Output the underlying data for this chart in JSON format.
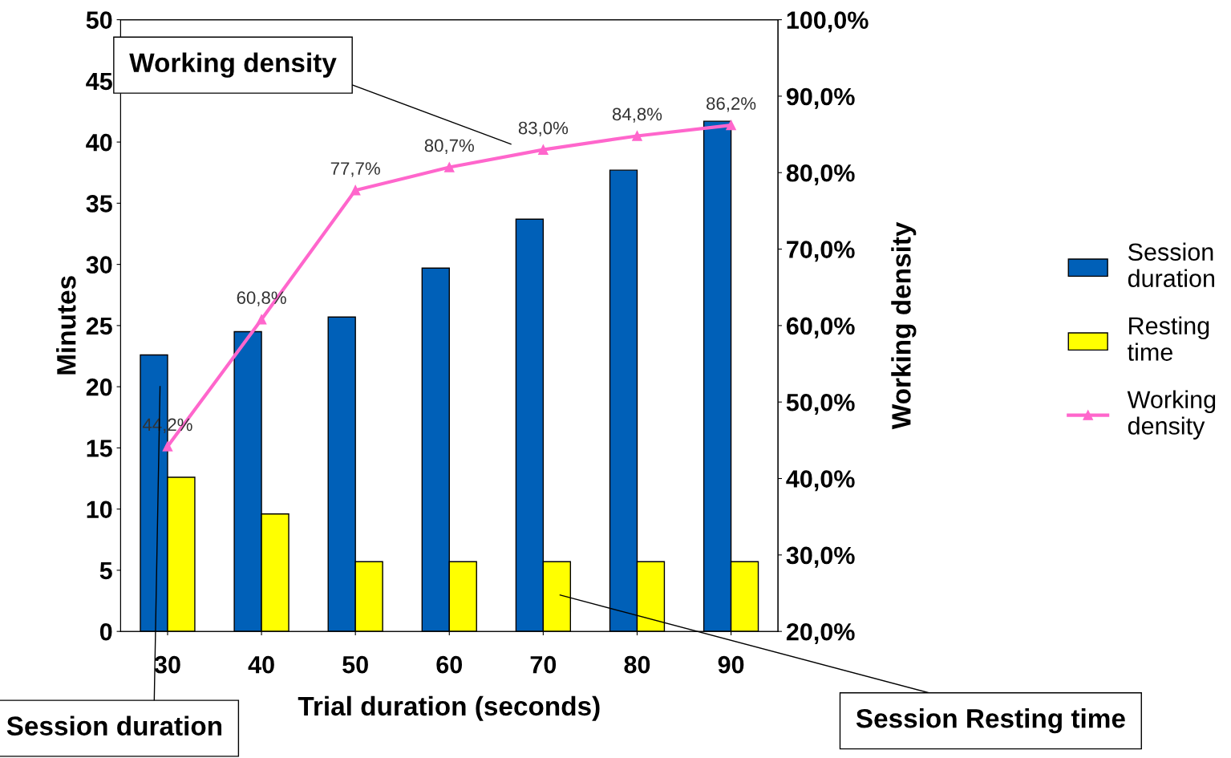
{
  "chart_data": {
    "type": "bar",
    "xlabel": "Trial duration (seconds)",
    "ylabel": "Minutes",
    "y2label": "Working density",
    "categories": [
      "30",
      "40",
      "50",
      "60",
      "70",
      "80",
      "90"
    ],
    "series": [
      {
        "name": "Session duration",
        "color": "#0060b8",
        "values": [
          22.6,
          24.5,
          25.7,
          29.7,
          33.7,
          37.7,
          41.7
        ]
      },
      {
        "name": "Resting time",
        "color": "#ffff00",
        "values": [
          12.6,
          9.6,
          5.7,
          5.7,
          5.7,
          5.7,
          5.7
        ]
      },
      {
        "name": "Working density",
        "type": "line",
        "axis": "y2",
        "color": "#ff66cc",
        "marker": "triangle",
        "values": [
          44.2,
          60.8,
          77.7,
          80.7,
          83.0,
          84.8,
          86.2
        ],
        "value_labels": [
          "44,2%",
          "60,8%",
          "77,7%",
          "80,7%",
          "83,0%",
          "84,8%",
          "86,2%"
        ]
      }
    ],
    "ylim": [
      0,
      50
    ],
    "yticks": [
      0,
      5,
      10,
      15,
      20,
      25,
      30,
      35,
      40,
      45,
      50
    ],
    "y2lim": [
      20,
      100
    ],
    "y2ticks": [
      {
        "value": 20,
        "label": "20,0%"
      },
      {
        "value": 30,
        "label": "30,0%"
      },
      {
        "value": 40,
        "label": "40,0%"
      },
      {
        "value": 50,
        "label": "50,0%"
      },
      {
        "value": 60,
        "label": "60,0%"
      },
      {
        "value": 70,
        "label": "70,0%"
      },
      {
        "value": 80,
        "label": "80,0%"
      },
      {
        "value": 90,
        "label": "90,0%"
      },
      {
        "value": 100,
        "label": "100,0%"
      }
    ],
    "legend": "right",
    "grid": false,
    "annotations": [
      "Working density",
      "Session duration",
      "Session Resting time"
    ]
  }
}
